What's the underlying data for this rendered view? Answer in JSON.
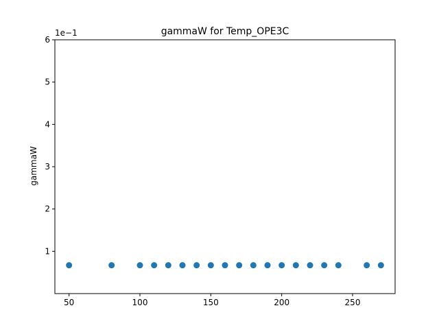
{
  "chart_data": {
    "type": "scatter",
    "title": "gammaW for Temp_OPE3C",
    "xlabel": "",
    "ylabel": "gammaW",
    "y_scale_label": "1e−1",
    "xlim": [
      40,
      280
    ],
    "ylim": [
      0.0,
      6.0
    ],
    "xticks": [
      50,
      100,
      150,
      200,
      250
    ],
    "xtick_labels": [
      "50",
      "100",
      "150",
      "200",
      "250"
    ],
    "yticks": [
      1,
      2,
      3,
      4,
      5,
      6
    ],
    "ytick_labels": [
      "1",
      "2",
      "3",
      "4",
      "5",
      "6"
    ],
    "grid": false,
    "marker_color": "#1f77b4",
    "series": [
      {
        "x": [
          50,
          80,
          100,
          110,
          120,
          130,
          140,
          150,
          160,
          170,
          180,
          190,
          200,
          210,
          220,
          230,
          240,
          260,
          270
        ],
        "y": [
          0.67,
          0.67,
          0.67,
          0.67,
          0.67,
          0.67,
          0.67,
          0.67,
          0.67,
          0.67,
          0.67,
          0.67,
          0.67,
          0.67,
          0.67,
          0.67,
          0.67,
          0.67,
          0.67
        ]
      }
    ]
  }
}
